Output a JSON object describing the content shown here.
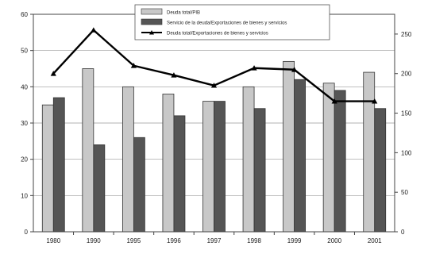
{
  "chart_data": {
    "type": "bar",
    "categories": [
      "1980",
      "1990",
      "1995",
      "1996",
      "1997",
      "1998",
      "1999",
      "2000",
      "2001"
    ],
    "series": [
      {
        "name": "Deuda total/PIB",
        "kind": "bar",
        "axis": "left",
        "color": "#c8c8c8",
        "values": [
          35,
          45,
          40,
          38,
          36,
          40,
          47,
          41,
          44
        ]
      },
      {
        "name": "Servicio de la deuda/Exportaciones de bienes y servicios",
        "kind": "bar",
        "axis": "left",
        "color": "#555555",
        "values": [
          37,
          24,
          26,
          32,
          36,
          34,
          42,
          39,
          34
        ]
      },
      {
        "name": "Deuda total/Exportaciones de bienes y servicios",
        "kind": "line",
        "axis": "right",
        "color": "#000000",
        "values": [
          200,
          255,
          210,
          198,
          185,
          207,
          205,
          165,
          165
        ]
      }
    ],
    "y_left": {
      "ylim": [
        0,
        60
      ],
      "ticks": [
        "0",
        "10",
        "20",
        "30",
        "40",
        "50",
        "60"
      ]
    },
    "y_right": {
      "ylim": [
        0,
        275
      ],
      "ticks": [
        "0",
        "50",
        "100",
        "150",
        "200",
        "250"
      ]
    },
    "legend_position": "top-center",
    "grid": "horizontal",
    "title": "",
    "xlabel": "",
    "ylabel": ""
  }
}
